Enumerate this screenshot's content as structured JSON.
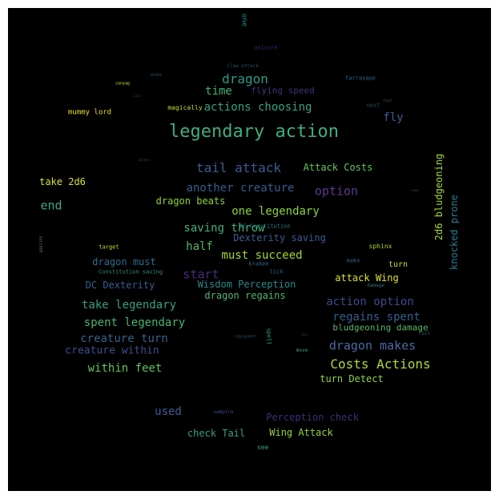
{
  "image": {
    "background": "#000000",
    "frame": "#ffffff"
  },
  "words": [
    {
      "text": "legendary action",
      "color": "#3fae7f"
    },
    {
      "text": "tail attack",
      "color": "#3b5c95"
    },
    {
      "text": "Costs Actions",
      "color": "#b3d73a"
    },
    {
      "text": "dragon makes",
      "color": "#4a69a3"
    },
    {
      "text": "dragon",
      "color": "#2c9a85"
    },
    {
      "text": "actions choosing",
      "color": "#35a27f"
    },
    {
      "text": "time",
      "color": "#3cb370"
    },
    {
      "text": "flying speed",
      "color": "#41367a"
    },
    {
      "text": "fly",
      "color": "#3d5d95"
    },
    {
      "text": "Attack Costs",
      "color": "#5ec85a"
    },
    {
      "text": "another creature",
      "color": "#365e8e"
    },
    {
      "text": "option",
      "color": "#5c3a8f"
    },
    {
      "text": "one legendary",
      "color": "#8dd43a"
    },
    {
      "text": "saving throw",
      "color": "#46b07a"
    },
    {
      "text": "Dexterity saving",
      "color": "#3b5c95"
    },
    {
      "text": "must succeed",
      "color": "#a6d636"
    },
    {
      "text": "half",
      "color": "#54b868"
    },
    {
      "text": "start",
      "color": "#4b2b80"
    },
    {
      "text": "dragon must",
      "color": "#306d8e"
    },
    {
      "text": "Wisdom Perception",
      "color": "#2c8a8a"
    },
    {
      "text": "DC Dexterity",
      "color": "#375d8f"
    },
    {
      "text": "dragon regains",
      "color": "#52b56d"
    },
    {
      "text": "take legendary",
      "color": "#3aa17d"
    },
    {
      "text": "action option",
      "color": "#3c4b8c"
    },
    {
      "text": "spent legendary",
      "color": "#48b36f"
    },
    {
      "text": "regains spent",
      "color": "#355e8f"
    },
    {
      "text": "creature turn",
      "color": "#34618d"
    },
    {
      "text": "creature within",
      "color": "#3f4e8b"
    },
    {
      "text": "within feet",
      "color": "#5ec85a"
    },
    {
      "text": "turn Detect",
      "color": "#8fd04a"
    },
    {
      "text": "bludgeoning damage",
      "color": "#5eb565"
    },
    {
      "text": "used",
      "color": "#3d5d95"
    },
    {
      "text": "Perception check",
      "color": "#3e2d77"
    },
    {
      "text": "Wing Attack",
      "color": "#93d53e"
    },
    {
      "text": "check Tail",
      "color": "#3aa17d"
    },
    {
      "text": "take 2d6",
      "color": "#d9e138"
    },
    {
      "text": "end",
      "color": "#3ca88a"
    },
    {
      "text": "dragon beats",
      "color": "#8dd43a"
    },
    {
      "text": "2d6 bludgeoning",
      "color": "#a4d636"
    },
    {
      "text": "knocked prone",
      "color": "#2b7c8e"
    },
    {
      "text": "attack Wing",
      "color": "#dfe22e"
    },
    {
      "text": "turn",
      "color": "#c4d932"
    },
    {
      "text": "mummy lord",
      "color": "#e2e22e"
    },
    {
      "text": "magically",
      "color": "#c8d833"
    },
    {
      "text": "tarrasque",
      "color": "#2f6b8e"
    },
    {
      "text": "one",
      "color": "#2c8a8a"
    },
    {
      "text": "unicorn",
      "color": "#3a2a74"
    },
    {
      "text": "claw attack",
      "color": "#2a4a5a"
    },
    {
      "text": "uses",
      "color": "#2c4f66"
    },
    {
      "text": "next",
      "color": "#2a4a5a"
    },
    {
      "text": "feet",
      "color": "#2a4a5a"
    },
    {
      "text": "sphinx",
      "color": "#b1d73a"
    },
    {
      "text": "target",
      "color": "#d6df33"
    },
    {
      "text": "kraken",
      "color": "#2f6b8e"
    },
    {
      "text": "lich",
      "color": "#2f6b8e"
    },
    {
      "text": "make",
      "color": "#34618d"
    },
    {
      "text": "damage",
      "color": "#3a6b7e"
    },
    {
      "text": "DC Constitution",
      "color": "#2c7d86"
    },
    {
      "text": "Constitution saving",
      "color": "#2f8a7a"
    },
    {
      "text": "spell",
      "color": "#3aa17d"
    },
    {
      "text": "vampire",
      "color": "#3d4f8a"
    },
    {
      "text": "see",
      "color": "#3aa17d"
    },
    {
      "text": "move",
      "color": "#3aa17d"
    },
    {
      "text": "cast",
      "color": "#2c4f66"
    },
    {
      "text": "equipment",
      "color": "#2a4a5a"
    },
    {
      "text": "succeed",
      "color": "#5a8a4a"
    },
    {
      "text": "lair",
      "color": "#2a4a5a"
    },
    {
      "text": "unless",
      "color": "#2a4a5a"
    },
    {
      "text": "Lair",
      "color": "#2a4a5a"
    },
    {
      "text": "save",
      "color": "#2a4a5a"
    },
    {
      "text": "sanyag",
      "color": "#d6df33"
    }
  ]
}
